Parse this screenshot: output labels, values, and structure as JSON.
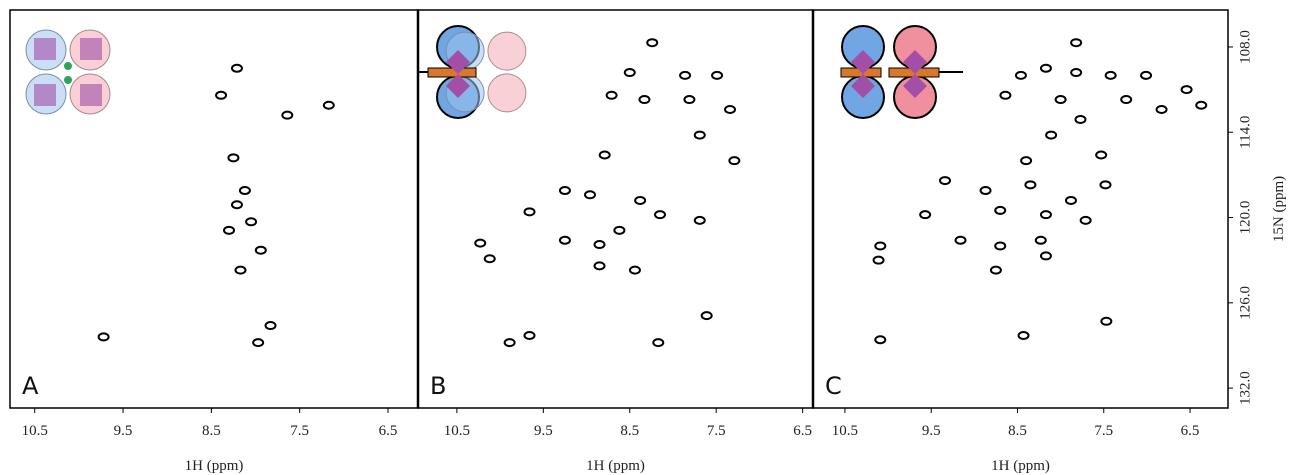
{
  "chart_data": [
    {
      "type": "scatter",
      "label": "A",
      "color": "#000000",
      "xlabel": "1H (ppm)",
      "xlim": [
        10.78,
        6.16
      ],
      "xticks": [
        10.5,
        9.5,
        8.5,
        7.5,
        6.5
      ],
      "ylim": [
        105.4,
        133.4
      ],
      "x": [
        8.21,
        8.39,
        7.64,
        7.17,
        8.25,
        8.12,
        8.21,
        8.05,
        8.3,
        7.94,
        8.17,
        7.83,
        7.97,
        9.72
      ],
      "y": [
        109.5,
        111.4,
        112.8,
        112.1,
        115.8,
        118.1,
        119.1,
        120.3,
        120.9,
        122.3,
        123.7,
        127.6,
        128.8,
        128.4
      ]
    },
    {
      "type": "scatter",
      "label": "B",
      "color": "#000000",
      "xlabel": "1H (ppm)",
      "xlim": [
        10.95,
        6.38
      ],
      "xticks": [
        10.5,
        9.5,
        8.5,
        7.5,
        6.5
      ],
      "ylim": [
        105.4,
        133.4
      ],
      "x": [
        8.24,
        8.5,
        8.71,
        7.86,
        7.49,
        8.33,
        7.81,
        7.34,
        8.79,
        7.69,
        7.29,
        9.25,
        8.96,
        8.38,
        8.15,
        8.62,
        7.69,
        9.66,
        9.25,
        8.85,
        10.23,
        10.12,
        8.85,
        8.44,
        9.66,
        9.89,
        7.61,
        8.17
      ],
      "y": [
        107.7,
        109.8,
        111.4,
        110.0,
        110.0,
        111.7,
        111.7,
        112.4,
        115.6,
        114.2,
        116.0,
        118.1,
        118.4,
        118.8,
        119.8,
        120.9,
        120.2,
        119.6,
        121.6,
        121.9,
        121.8,
        122.9,
        123.4,
        123.7,
        128.3,
        128.8,
        126.9,
        128.8
      ]
    },
    {
      "type": "scatter",
      "label": "C",
      "color": "#000000",
      "xlabel": "1H (ppm)",
      "ylabel": "15N (ppm)",
      "xlim": [
        10.87,
        6.06
      ],
      "xticks": [
        10.5,
        9.5,
        8.5,
        7.5,
        6.5
      ],
      "ylim": [
        105.4,
        133.4
      ],
      "yticks": [
        {
          "value": 108,
          "label": "108.0"
        },
        {
          "value": 114,
          "label": "114.0"
        },
        {
          "value": 120,
          "label": "120.0"
        },
        {
          "value": 126,
          "label": "126.0"
        },
        {
          "value": 132,
          "label": "132.0"
        }
      ],
      "x": [
        7.82,
        8.46,
        8.17,
        7.82,
        7.42,
        7.01,
        6.54,
        6.37,
        8.64,
        8.0,
        7.24,
        6.83,
        7.77,
        8.11,
        8.4,
        7.53,
        9.34,
        8.87,
        8.35,
        7.88,
        7.48,
        8.7,
        8.17,
        7.71,
        9.16,
        8.7,
        8.23,
        9.57,
        10.09,
        10.11,
        8.75,
        8.17,
        8.43,
        10.09,
        7.47
      ],
      "y": [
        107.7,
        110.0,
        109.5,
        109.8,
        110.0,
        110.0,
        111.0,
        112.1,
        111.4,
        111.7,
        111.7,
        112.4,
        113.1,
        114.2,
        116.0,
        115.6,
        117.4,
        118.1,
        117.7,
        118.8,
        117.7,
        119.5,
        119.8,
        120.2,
        121.6,
        122.0,
        121.6,
        119.8,
        122.0,
        123.0,
        123.7,
        122.7,
        128.3,
        128.6,
        127.3
      ]
    }
  ]
}
